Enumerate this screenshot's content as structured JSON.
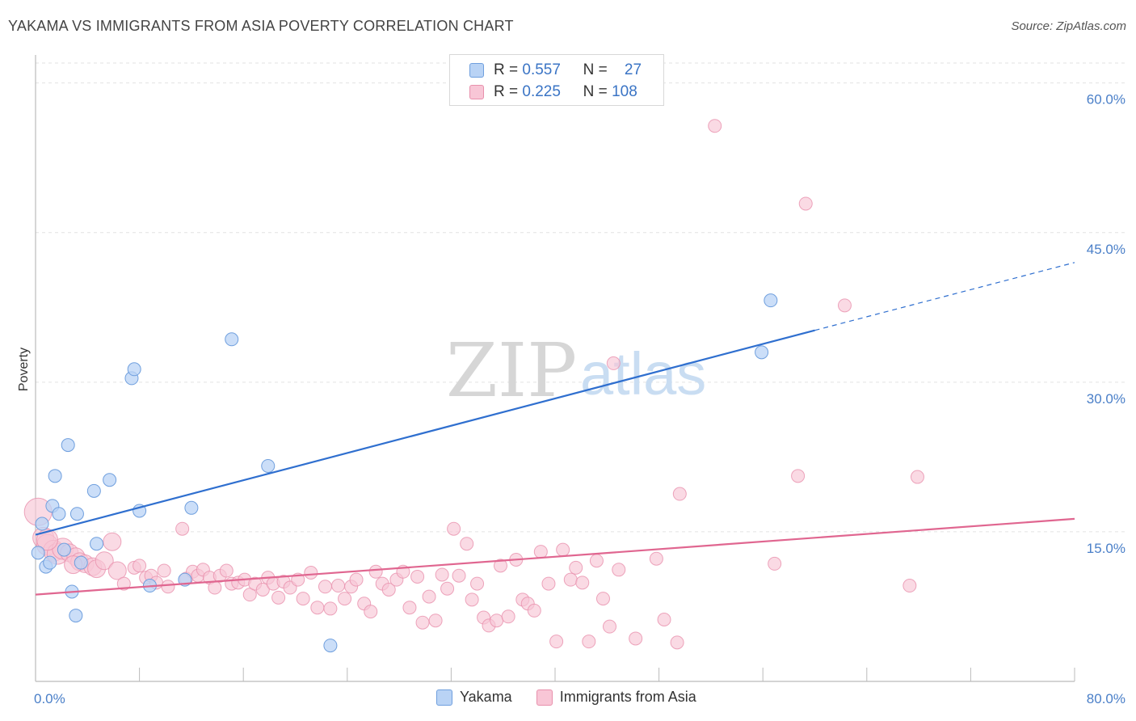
{
  "header": {
    "title": "YAKAMA VS IMMIGRANTS FROM ASIA POVERTY CORRELATION CHART",
    "source": "Source: ZipAtlas.com"
  },
  "legend": {
    "yakama": {
      "r_label": "R =",
      "r_value": "0.557",
      "n_label": "N =",
      "n_value": "27"
    },
    "asia": {
      "r_label": "R =",
      "r_value": "0.225",
      "n_label": "N =",
      "n_value": "108"
    }
  },
  "bottom_legend": {
    "yakama": "Yakama",
    "asia": "Immigrants from Asia"
  },
  "watermark": {
    "zip": "ZIP",
    "atlas": "atlas"
  },
  "colors": {
    "yakama_fill": "#b9d3f5",
    "yakama_stroke": "#6f9fde",
    "yakama_line": "#2f6fcf",
    "asia_fill": "#f8c6d6",
    "asia_stroke": "#e890ac",
    "asia_line": "#e06690",
    "tick_text": "#4a7fc8"
  },
  "chart_data": {
    "type": "scatter",
    "title": "YAKAMA VS IMMIGRANTS FROM ASIA POVERTY CORRELATION CHART",
    "xlabel": "",
    "ylabel": "Poverty",
    "xlim": [
      0,
      80
    ],
    "ylim": [
      0,
      62
    ],
    "x_tick_labels": [
      "0.0%",
      "80.0%"
    ],
    "y_ticks": [
      15,
      30,
      45,
      60
    ],
    "y_tick_labels": [
      "15.0%",
      "30.0%",
      "45.0%",
      "60.0%"
    ],
    "grid": true,
    "legend_position": "top-center",
    "series": [
      {
        "name": "Yakama",
        "points": [
          [
            0.2,
            12.9
          ],
          [
            0.5,
            15.8
          ],
          [
            0.8,
            11.5
          ],
          [
            1.1,
            11.9
          ],
          [
            1.3,
            17.6
          ],
          [
            1.5,
            20.6
          ],
          [
            1.8,
            16.8
          ],
          [
            2.2,
            13.2
          ],
          [
            2.5,
            23.7
          ],
          [
            2.8,
            9.0
          ],
          [
            3.1,
            6.6
          ],
          [
            3.2,
            16.8
          ],
          [
            3.5,
            11.9
          ],
          [
            4.5,
            19.1
          ],
          [
            4.7,
            13.8
          ],
          [
            5.7,
            20.2
          ],
          [
            7.4,
            30.4
          ],
          [
            7.6,
            31.3
          ],
          [
            8.0,
            17.1
          ],
          [
            8.8,
            9.6
          ],
          [
            11.5,
            10.2
          ],
          [
            12.0,
            17.4
          ],
          [
            15.1,
            34.3
          ],
          [
            17.9,
            21.6
          ],
          [
            22.7,
            3.6
          ],
          [
            55.9,
            33.0
          ],
          [
            56.6,
            38.2
          ]
        ],
        "trend": {
          "x": [
            0,
            60
          ],
          "y": [
            14.7,
            35.2
          ],
          "dashed_to": [
            80,
            42.0
          ]
        }
      },
      {
        "name": "Immigrants from Asia",
        "points": [
          [
            0.2,
            17.0
          ],
          [
            0.6,
            14.4
          ],
          [
            0.9,
            13.7
          ],
          [
            1.4,
            13.1
          ],
          [
            1.7,
            12.8
          ],
          [
            2.1,
            13.3
          ],
          [
            2.6,
            12.9
          ],
          [
            3.1,
            12.5
          ],
          [
            3.4,
            12.0
          ],
          [
            3.8,
            11.8
          ],
          [
            4.4,
            11.5
          ],
          [
            4.7,
            11.3
          ],
          [
            5.3,
            12.1
          ],
          [
            5.9,
            14.0
          ],
          [
            6.3,
            11.1
          ],
          [
            6.8,
            9.8
          ],
          [
            7.6,
            11.4
          ],
          [
            8.0,
            11.6
          ],
          [
            8.5,
            10.4
          ],
          [
            8.9,
            10.6
          ],
          [
            9.3,
            9.9
          ],
          [
            9.9,
            11.1
          ],
          [
            10.2,
            9.5
          ],
          [
            11.3,
            15.3
          ],
          [
            11.6,
            10.3
          ],
          [
            12.1,
            11.0
          ],
          [
            12.5,
            10.6
          ],
          [
            12.9,
            11.2
          ],
          [
            13.4,
            10.4
          ],
          [
            13.8,
            9.4
          ],
          [
            14.2,
            10.6
          ],
          [
            14.7,
            11.1
          ],
          [
            15.1,
            9.8
          ],
          [
            15.6,
            9.9
          ],
          [
            16.1,
            10.2
          ],
          [
            16.5,
            8.7
          ],
          [
            16.9,
            9.8
          ],
          [
            17.5,
            9.2
          ],
          [
            17.9,
            10.4
          ],
          [
            18.3,
            9.8
          ],
          [
            18.7,
            8.4
          ],
          [
            19.1,
            10.0
          ],
          [
            19.6,
            9.4
          ],
          [
            20.2,
            10.2
          ],
          [
            20.6,
            8.3
          ],
          [
            21.2,
            10.9
          ],
          [
            21.7,
            7.4
          ],
          [
            22.3,
            9.5
          ],
          [
            22.7,
            7.3
          ],
          [
            23.3,
            9.6
          ],
          [
            23.8,
            8.3
          ],
          [
            24.3,
            9.5
          ],
          [
            24.7,
            10.2
          ],
          [
            25.3,
            7.8
          ],
          [
            25.8,
            7.0
          ],
          [
            26.2,
            11.0
          ],
          [
            26.7,
            9.8
          ],
          [
            27.2,
            9.2
          ],
          [
            27.8,
            10.2
          ],
          [
            28.3,
            11.0
          ],
          [
            28.8,
            7.4
          ],
          [
            29.4,
            10.5
          ],
          [
            29.8,
            5.9
          ],
          [
            30.3,
            8.5
          ],
          [
            30.8,
            6.1
          ],
          [
            31.3,
            10.7
          ],
          [
            31.7,
            9.3
          ],
          [
            32.2,
            15.3
          ],
          [
            32.6,
            10.6
          ],
          [
            33.2,
            13.8
          ],
          [
            33.6,
            8.2
          ],
          [
            34.0,
            9.8
          ],
          [
            34.5,
            6.4
          ],
          [
            34.9,
            5.6
          ],
          [
            35.5,
            6.1
          ],
          [
            35.8,
            11.6
          ],
          [
            36.4,
            6.5
          ],
          [
            37.0,
            12.2
          ],
          [
            37.5,
            8.2
          ],
          [
            37.9,
            7.8
          ],
          [
            38.4,
            7.1
          ],
          [
            38.9,
            13.0
          ],
          [
            39.5,
            9.8
          ],
          [
            40.1,
            4.0
          ],
          [
            40.6,
            13.2
          ],
          [
            41.2,
            10.2
          ],
          [
            41.6,
            11.4
          ],
          [
            42.1,
            9.9
          ],
          [
            42.6,
            4.0
          ],
          [
            43.2,
            12.1
          ],
          [
            43.7,
            8.3
          ],
          [
            44.2,
            5.5
          ],
          [
            44.5,
            31.9
          ],
          [
            44.9,
            11.2
          ],
          [
            46.2,
            4.3
          ],
          [
            47.8,
            12.3
          ],
          [
            48.4,
            6.2
          ],
          [
            49.4,
            3.9
          ],
          [
            49.6,
            18.8
          ],
          [
            52.3,
            55.7
          ],
          [
            56.9,
            11.8
          ],
          [
            58.7,
            20.6
          ],
          [
            59.3,
            47.9
          ],
          [
            62.3,
            37.7
          ],
          [
            67.3,
            9.6
          ],
          [
            67.9,
            20.5
          ],
          [
            0.9,
            14.2
          ],
          [
            2.9,
            11.7
          ]
        ],
        "trend": {
          "x": [
            0,
            80
          ],
          "y": [
            8.7,
            16.3
          ]
        }
      }
    ]
  }
}
